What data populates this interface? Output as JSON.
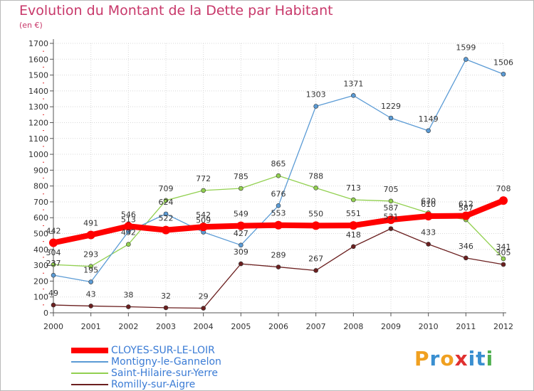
{
  "title": "Evolution du Montant de la Dette par Habitant",
  "subtitle": "(en €)",
  "logo": {
    "text": "Proxiti",
    "letters": [
      "P",
      "r",
      "o",
      "x",
      "i",
      "t",
      "i"
    ],
    "colors": [
      "#f0a020",
      "#3a8fd0",
      "#f0a020",
      "#e03030",
      "#3a8fd0",
      "#3a8fd0",
      "#50b050"
    ]
  },
  "chart_data": {
    "type": "line",
    "title": "Evolution du Montant de la Dette par Habitant",
    "ylabel": "(en €)",
    "xlabel": "",
    "x": [
      "2000",
      "2001",
      "2002",
      "2003",
      "2004",
      "2005",
      "2006",
      "2007",
      "2008",
      "2009",
      "2010",
      "2011",
      "2012"
    ],
    "ylim": [
      0,
      1700
    ],
    "yticks": [
      0,
      100,
      200,
      300,
      400,
      500,
      600,
      700,
      800,
      900,
      1000,
      1100,
      1200,
      1300,
      1400,
      1500,
      1600,
      1700
    ],
    "grid": true,
    "legend_position": "bottom-left",
    "series": [
      {
        "name": "CLOYES-SUR-LE-LOIR",
        "color": "#ff0000",
        "values": [
          442,
          491,
          546,
          522,
          542,
          549,
          553,
          550,
          551,
          587,
          610,
          612,
          708
        ]
      },
      {
        "name": "Montigny-le-Gannelon",
        "color": "#5b9bd5",
        "values": [
          237,
          195,
          513,
          624,
          509,
          427,
          676,
          1303,
          1371,
          1229,
          1149,
          1599,
          1506
        ]
      },
      {
        "name": "Saint-Hilaire-sur-Yerre",
        "color": "#92d050",
        "values": [
          304,
          293,
          432,
          709,
          772,
          785,
          865,
          788,
          713,
          705,
          630,
          587,
          341
        ]
      },
      {
        "name": "Romilly-sur-Aigre",
        "color": "#6b1f1f",
        "values": [
          49,
          43,
          38,
          32,
          29,
          309,
          289,
          267,
          418,
          531,
          433,
          346,
          305
        ]
      }
    ]
  }
}
